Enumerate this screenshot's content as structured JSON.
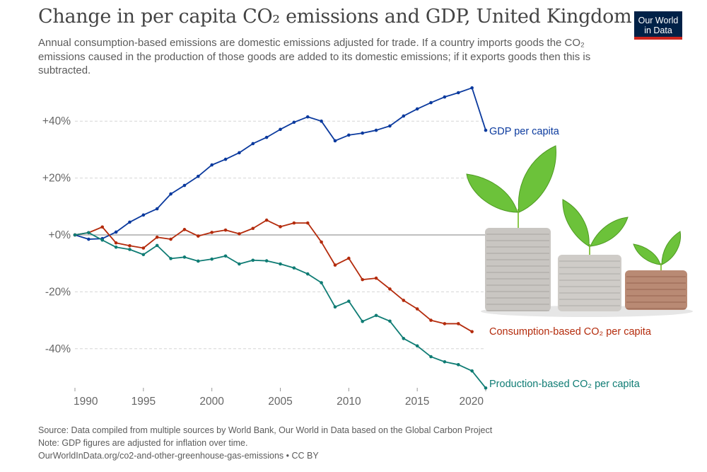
{
  "header": {
    "title": "Change in per capita CO₂ emissions and GDP, United Kingdom",
    "subtitle": "Annual consumption-based emissions are domestic emissions adjusted for trade. If a country imports goods the CO₂ emissions caused in the production of those goods are added to its domestic emissions; if it exports goods then this is subtracted.",
    "logo_line1": "Our World",
    "logo_line2": "in Data"
  },
  "footer": {
    "source": "Source: Data compiled from multiple sources by World Bank, Our World in Data based on the Global Carbon Project",
    "note": "Note: GDP figures are adjusted for inflation over time.",
    "url": "OurWorldInData.org/co2-and-other-greenhouse-gas-emissions • CC BY"
  },
  "decoration": {
    "image": "coins-with-sprouting-plants"
  },
  "chart_data": {
    "type": "line",
    "title": "Change in per capita CO₂ emissions and GDP, United Kingdom",
    "xlabel": "",
    "ylabel": "",
    "xlim": [
      1990,
      2020
    ],
    "ylim": [
      -55,
      52
    ],
    "x_ticks": [
      1990,
      1995,
      2000,
      2005,
      2010,
      2015,
      2020
    ],
    "x_tick_labels": [
      "1990",
      "1995",
      "2000",
      "2005",
      "2010",
      "2015",
      "2020"
    ],
    "y_ticks": [
      40,
      20,
      0,
      -20,
      -40
    ],
    "y_tick_labels": [
      "+40%",
      "+20%",
      "+0%",
      "-20%",
      "-40%"
    ],
    "grid": "horizontal-dashed",
    "legend": "inline-right",
    "series": [
      {
        "name": "GDP per capita",
        "color": "#0b3a9e",
        "start_year": 1990,
        "values": [
          0,
          -1.5,
          -1.3,
          1.0,
          4.5,
          7.0,
          9.2,
          14.4,
          17.4,
          20.6,
          24.6,
          26.6,
          28.9,
          32.1,
          34.3,
          37.1,
          39.6,
          41.5,
          40.0,
          33.1,
          35.1,
          35.8,
          36.8,
          38.3,
          41.8,
          44.3,
          46.5,
          48.5,
          50.0,
          51.7,
          36.8
        ]
      },
      {
        "name": "Consumption-based CO₂ per capita",
        "color": "#b42b0c",
        "start_year": 1990,
        "values": [
          0,
          0.8,
          2.8,
          -2.8,
          -3.8,
          -4.6,
          -0.8,
          -1.5,
          1.9,
          -0.4,
          0.9,
          1.7,
          0.4,
          2.3,
          5.2,
          2.9,
          4.2,
          4.2,
          -2.5,
          -10.6,
          -8.2,
          -15.7,
          -15.2,
          -19.0,
          -23.0,
          -26.0,
          -30.0,
          -31.2,
          -31.2,
          -34.0
        ]
      },
      {
        "name": "Production-based CO₂ per capita",
        "color": "#0f7c74",
        "start_year": 1990,
        "values": [
          0,
          0.8,
          -1.8,
          -4.3,
          -5.1,
          -6.9,
          -3.7,
          -8.3,
          -7.8,
          -9.2,
          -8.5,
          -7.4,
          -10.2,
          -8.9,
          -9.1,
          -10.2,
          -11.6,
          -13.7,
          -16.8,
          -25.3,
          -23.3,
          -30.4,
          -28.3,
          -30.3,
          -36.4,
          -39.0,
          -42.8,
          -44.6,
          -45.6,
          -47.8,
          -53.8
        ]
      }
    ]
  }
}
